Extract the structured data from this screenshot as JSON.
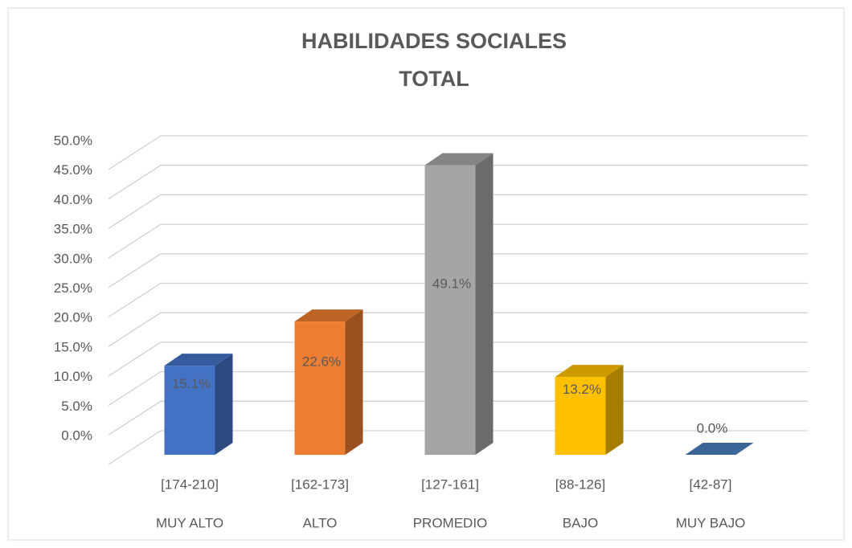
{
  "chart_data": {
    "type": "bar3d",
    "title": "HABILIDADES SOCIALES",
    "subtitle": "TOTAL",
    "categories": [
      "[174-210]",
      "[162-173]",
      "[127-161]",
      "[88-126]",
      "[42-87]"
    ],
    "category_labels": [
      "MUY ALTO",
      "ALTO",
      "PROMEDIO",
      "BAJO",
      "MUY BAJO"
    ],
    "values": [
      15.1,
      22.6,
      49.1,
      13.2,
      0.0
    ],
    "value_labels": [
      "15.1%",
      "22.6%",
      "49.1%",
      "13.2%",
      "0.0%"
    ],
    "colors": [
      "#4472c4",
      "#ed7d31",
      "#a5a5a5",
      "#ffc000",
      "#4a7ebb"
    ],
    "ylim": [
      0,
      50
    ],
    "yticks": [
      {
        "value": 0,
        "label": "0.0%"
      },
      {
        "value": 5,
        "label": "5.0%"
      },
      {
        "value": 10,
        "label": "10.0%"
      },
      {
        "value": 15,
        "label": "15.0%"
      },
      {
        "value": 20,
        "label": "20.0%"
      },
      {
        "value": 25,
        "label": "25.0%"
      },
      {
        "value": 30,
        "label": "30.0%"
      },
      {
        "value": 35,
        "label": "35.0%"
      },
      {
        "value": 40,
        "label": "40.0%"
      },
      {
        "value": 45,
        "label": "45.0%"
      },
      {
        "value": 50,
        "label": "50.0%"
      }
    ],
    "grid": true
  }
}
